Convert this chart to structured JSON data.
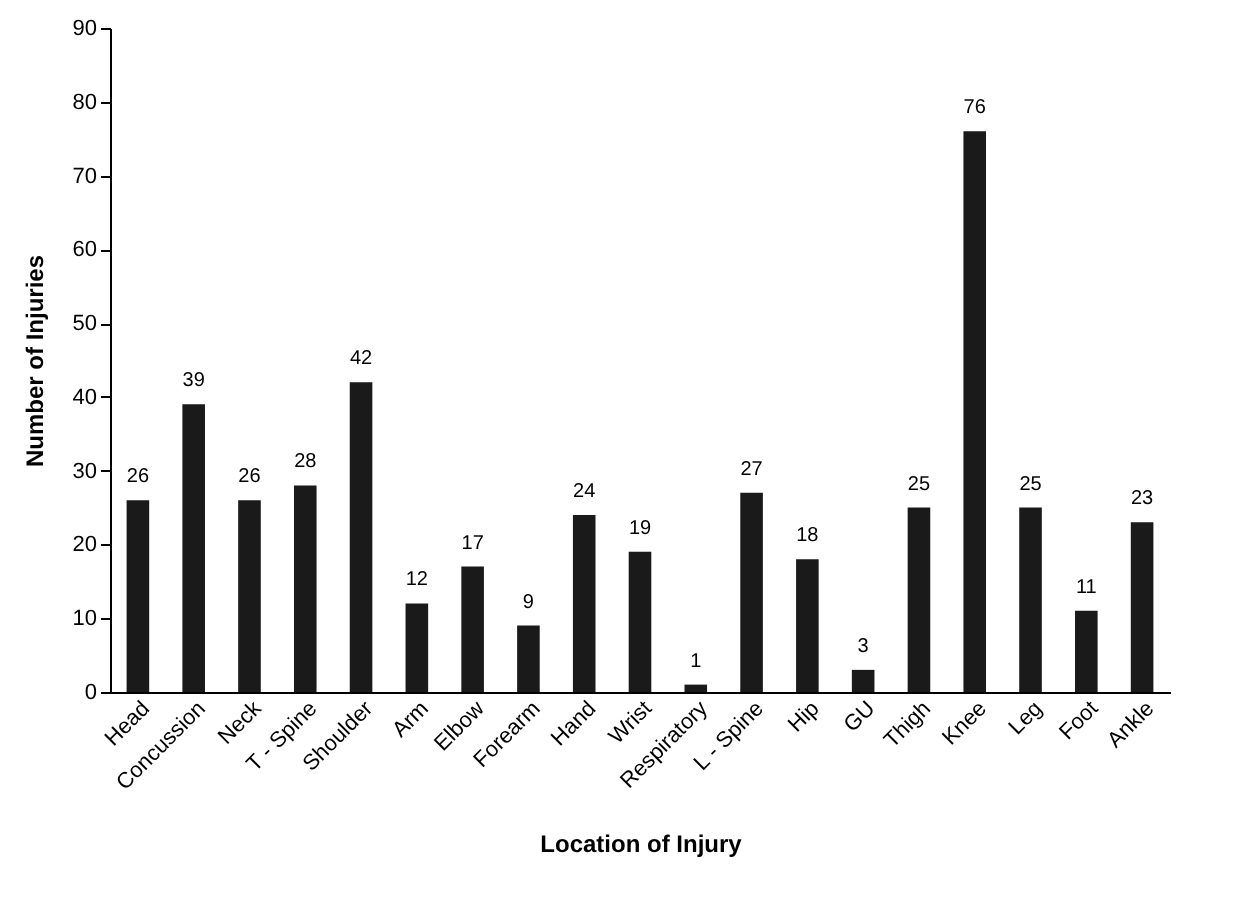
{
  "chart_data": {
    "type": "bar",
    "xlabel": "Location of Injury",
    "ylabel": "Number of Injuries",
    "categories": [
      "Head",
      "Concussion",
      "Neck",
      "T - Spine",
      "Shoulder",
      "Arm",
      "Elbow",
      "Forearm",
      "Hand",
      "Wrist",
      "Respiratory",
      "L - Spine",
      "Hip",
      "GU",
      "Thigh",
      "Knee",
      "Leg",
      "Foot",
      "Ankle"
    ],
    "values": [
      26,
      39,
      26,
      28,
      42,
      12,
      17,
      9,
      24,
      19,
      1,
      27,
      18,
      3,
      25,
      76,
      25,
      11,
      23
    ],
    "color": "#1a1a1a",
    "data_labels": true,
    "grid": false,
    "ylim": [
      0,
      90
    ],
    "yticks": [
      0,
      10,
      20,
      30,
      40,
      50,
      60,
      70,
      80,
      90
    ]
  }
}
